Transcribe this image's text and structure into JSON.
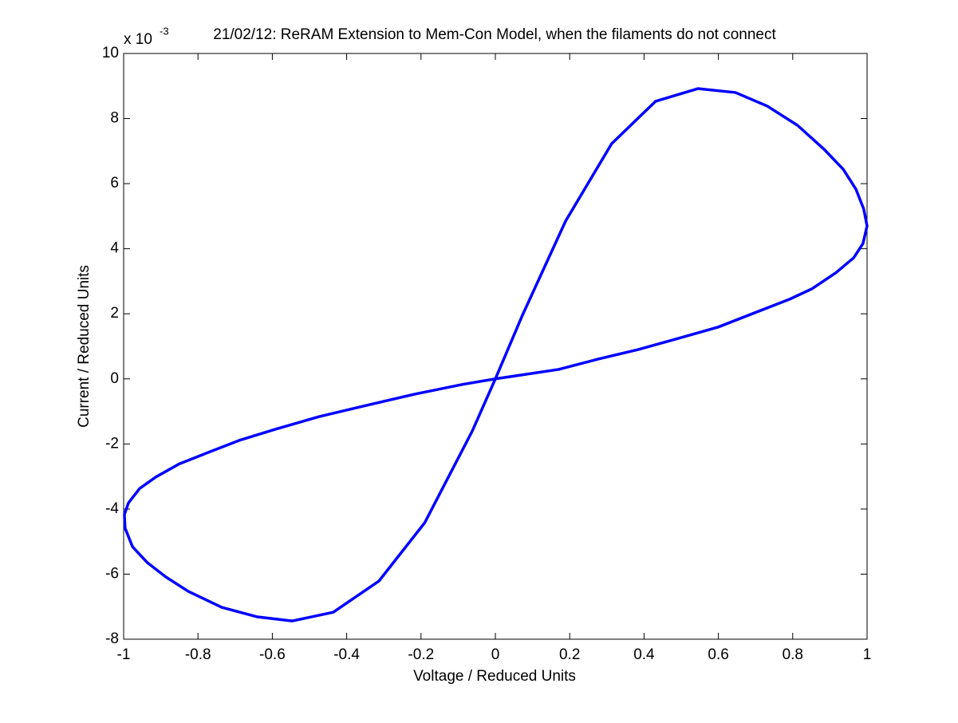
{
  "chart_data": {
    "type": "line",
    "title": "21/02/12: ReRAM Extension to Mem-Con Model, when the filaments do not connect",
    "x_label": "Voltage / Reduced Units",
    "y_label": "Current / Reduced Units",
    "y_scale_label": "x 10",
    "y_scale_exponent": "-3",
    "xlim": [
      -1,
      1
    ],
    "ylim": [
      -8,
      10
    ],
    "xticks": [
      -1,
      -0.8,
      -0.6,
      -0.4,
      -0.2,
      0,
      0.2,
      0.4,
      0.6,
      0.8,
      1
    ],
    "yticks": [
      -8,
      -6,
      -4,
      -2,
      0,
      2,
      4,
      6,
      8,
      10
    ],
    "grid": false,
    "series": [
      {
        "color": "#0000ff",
        "x": [
          0,
          0.073,
          0.189,
          0.313,
          0.431,
          0.545,
          0.646,
          0.732,
          0.813,
          0.884,
          0.936,
          0.97,
          0.991,
          1.0,
          0.989,
          0.964,
          0.916,
          0.852,
          0.792,
          0.702,
          0.599,
          0.491,
          0.384,
          0.277,
          0.17,
          0,
          -0.088,
          -0.217,
          -0.345,
          -0.474,
          -0.592,
          -0.689,
          -0.779,
          -0.85,
          -0.914,
          -0.957,
          -0.987,
          -0.998,
          -0.996,
          -0.976,
          -0.936,
          -0.886,
          -0.826,
          -0.736,
          -0.642,
          -0.547,
          -0.436,
          -0.313,
          -0.19,
          -0.062,
          0
        ],
        "values": [
          0,
          1.96,
          4.85,
          7.23,
          8.53,
          8.92,
          8.8,
          8.38,
          7.79,
          7.06,
          6.44,
          5.83,
          5.22,
          4.7,
          4.16,
          3.72,
          3.26,
          2.77,
          2.45,
          2.05,
          1.59,
          1.24,
          0.9,
          0.61,
          0.29,
          0,
          -0.17,
          -0.47,
          -0.81,
          -1.16,
          -1.55,
          -1.89,
          -2.29,
          -2.61,
          -3.02,
          -3.37,
          -3.81,
          -4.17,
          -4.59,
          -5.16,
          -5.65,
          -6.09,
          -6.53,
          -7.02,
          -7.31,
          -7.44,
          -7.17,
          -6.21,
          -4.42,
          -1.6,
          0
        ]
      }
    ]
  }
}
